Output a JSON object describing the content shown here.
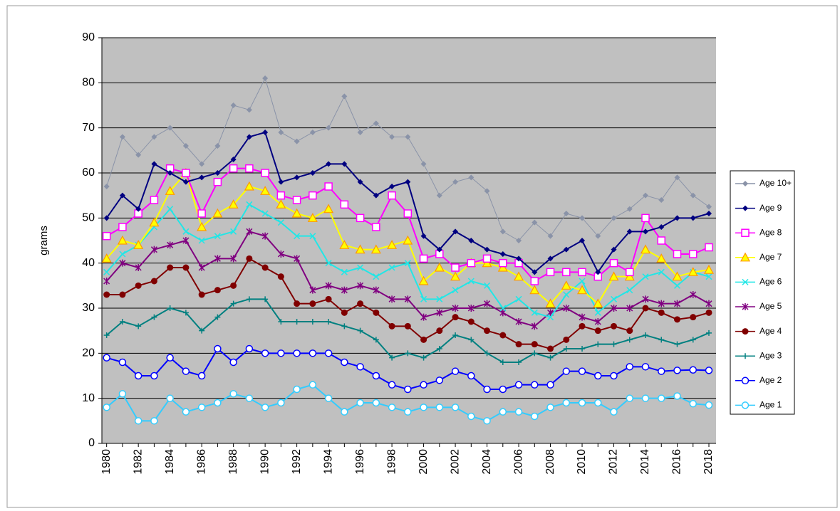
{
  "chart_data": {
    "type": "line",
    "y_label": "grams",
    "x": [
      1980,
      1981,
      1982,
      1983,
      1984,
      1985,
      1986,
      1987,
      1988,
      1989,
      1990,
      1991,
      1992,
      1993,
      1994,
      1995,
      1996,
      1997,
      1998,
      1999,
      2000,
      2001,
      2002,
      2003,
      2004,
      2005,
      2006,
      2007,
      2008,
      2009,
      2010,
      2011,
      2012,
      2013,
      2014,
      2015,
      2016,
      2017,
      2018
    ],
    "xlim": [
      1979.7,
      2018.45
    ],
    "xticks": [
      1980,
      1982,
      1984,
      1986,
      1988,
      1990,
      1992,
      1994,
      1996,
      1998,
      2000,
      2002,
      2004,
      2006,
      2008,
      2010,
      2012,
      2014,
      2016,
      2018
    ],
    "ylim": [
      0,
      90
    ],
    "yticks": [
      0,
      10,
      20,
      30,
      40,
      50,
      60,
      70,
      80,
      90
    ],
    "grid": true,
    "legend": "right",
    "series": [
      {
        "name": "Age 10+",
        "color": "#8a93a8",
        "marker": "diamond",
        "values": [
          57,
          68,
          64,
          68,
          70,
          66,
          62,
          66,
          75,
          74,
          81,
          69,
          67,
          69,
          70,
          77,
          69,
          71,
          68,
          68,
          62,
          55,
          58,
          59,
          56,
          47,
          45,
          49,
          46,
          51,
          50,
          46,
          50,
          52,
          55,
          54,
          59,
          55,
          52.5
        ]
      },
      {
        "name": "Age 9",
        "color": "#000080",
        "marker": "diamond",
        "values": [
          50,
          55,
          52,
          62,
          60,
          58,
          59,
          60,
          63,
          68,
          69,
          58,
          59,
          60,
          62,
          62,
          58,
          55,
          57,
          58,
          46,
          43,
          47,
          45,
          43,
          42,
          41,
          38,
          41,
          43,
          45,
          38,
          43,
          47,
          47,
          48,
          50,
          50,
          51
        ]
      },
      {
        "name": "Age 8",
        "color": "#ff00ff",
        "marker": "square",
        "values": [
          46,
          48,
          51,
          54,
          61,
          60,
          51,
          58,
          61,
          61,
          60,
          55,
          54,
          55,
          57,
          53,
          50,
          48,
          55,
          51,
          41,
          42,
          39,
          40,
          41,
          40,
          40,
          36,
          38,
          38,
          38,
          37,
          40,
          38,
          50,
          45,
          42,
          42,
          43.5
        ]
      },
      {
        "name": "Age 7",
        "color": "#ffff00",
        "marker": "triangle",
        "values": [
          41,
          45,
          44,
          49,
          56,
          60,
          48,
          51,
          53,
          57,
          56,
          53,
          51,
          50,
          52,
          44,
          43,
          43,
          44,
          45,
          36,
          39,
          37,
          40,
          40,
          39,
          37,
          34,
          31,
          35,
          34,
          31,
          37,
          37,
          43,
          41,
          37,
          38,
          38.5
        ]
      },
      {
        "name": "Age 6",
        "color": "#22e6e6",
        "marker": "x",
        "values": [
          38,
          42,
          44,
          48,
          52,
          47,
          45,
          46,
          47,
          53,
          51,
          49,
          46,
          46,
          40,
          38,
          39,
          37,
          39,
          40,
          32,
          32,
          34,
          36,
          35,
          30,
          32,
          29,
          28,
          33,
          36,
          29,
          32,
          34,
          37,
          38,
          35,
          38,
          37
        ]
      },
      {
        "name": "Age 5",
        "color": "#800080",
        "marker": "star",
        "values": [
          36,
          40,
          39,
          43,
          44,
          45,
          39,
          41,
          41,
          47,
          46,
          42,
          41,
          34,
          35,
          34,
          35,
          34,
          32,
          32,
          28,
          29,
          30,
          30,
          31,
          29,
          27,
          26,
          29,
          30,
          28,
          27,
          30,
          30,
          32,
          31,
          31,
          33,
          31
        ]
      },
      {
        "name": "Age 4",
        "color": "#800000",
        "marker": "dot",
        "values": [
          33,
          33,
          35,
          36,
          39,
          39,
          33,
          34,
          35,
          41,
          39,
          37,
          31,
          31,
          32,
          29,
          31,
          29,
          26,
          26,
          23,
          25,
          28,
          27,
          25,
          24,
          22,
          22,
          21,
          23,
          26,
          25,
          26,
          25,
          30,
          29,
          27.5,
          28,
          29
        ]
      },
      {
        "name": "Age 3",
        "color": "#008080",
        "marker": "plus",
        "values": [
          24,
          27,
          26,
          28,
          30,
          29,
          25,
          28,
          31,
          32,
          32,
          27,
          27,
          27,
          27,
          26,
          25,
          23,
          19,
          20,
          19,
          21,
          24,
          23,
          20,
          18,
          18,
          20,
          19,
          21,
          21,
          22,
          22,
          23,
          24,
          23,
          22,
          23,
          24.5
        ]
      },
      {
        "name": "Age 2",
        "color": "#0000ff",
        "marker": "circle",
        "values": [
          19,
          18,
          15,
          15,
          19,
          16,
          15,
          21,
          18,
          21,
          20,
          20,
          20,
          20,
          20,
          18,
          17,
          15,
          13,
          12,
          13,
          14,
          16,
          15,
          12,
          12,
          13,
          13,
          13,
          16,
          16,
          15,
          15,
          17,
          17,
          16,
          16.2,
          16.3,
          16.2
        ]
      },
      {
        "name": "Age 1",
        "color": "#33ccff",
        "marker": "circle",
        "values": [
          8,
          11,
          5,
          5,
          10,
          7,
          8,
          9,
          11,
          10,
          8,
          9,
          12,
          13,
          10,
          7,
          9,
          9,
          8,
          7,
          8,
          8,
          8,
          6,
          5,
          7,
          7,
          6,
          8,
          9,
          9,
          9,
          7,
          10,
          10,
          10,
          10.5,
          8.8,
          8.5
        ]
      }
    ]
  }
}
